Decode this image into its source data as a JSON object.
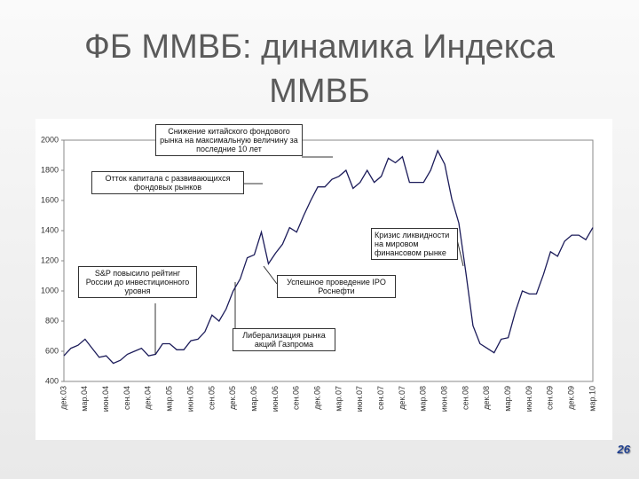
{
  "chart_data": {
    "type": "line",
    "title": "ФБ ММВБ: динамика Индекса ММВБ",
    "page_number": "26",
    "annotations": [
      "Снижение китайского фондового рынка на максимальную величину за последние 10 лет",
      "Отток капитала с развивающихся фондовых рынков",
      "Кризис ликвидности на мировом финансовом рынке",
      "S&P повысило рейтинг России до инвестиционного уровня",
      "Успешное проведение IPO Роснефти",
      "Либерализация рынка акций Газпрома"
    ],
    "categories": [
      "дек.03",
      null,
      null,
      "мар.04",
      null,
      null,
      "июн.04",
      null,
      null,
      "сен.04",
      null,
      null,
      "дек.04",
      null,
      null,
      "мар.05",
      null,
      null,
      "июн.05",
      null,
      null,
      "сен.05",
      null,
      null,
      "дек.05",
      null,
      null,
      "мар.06",
      null,
      null,
      "июн.06",
      null,
      null,
      "сен.06",
      null,
      null,
      "дек.06",
      null,
      null,
      "мар.07",
      null,
      null,
      "июн.07",
      null,
      null,
      "сен.07",
      null,
      null,
      "дек.07",
      null,
      null,
      "мар.08",
      null,
      null,
      "июн.08",
      null,
      null,
      "сен.08",
      null,
      null,
      "дек.08",
      null,
      null,
      "мар.09",
      null,
      null,
      "июн.09",
      null,
      null,
      "сен.09",
      null,
      null,
      "дек.09",
      null,
      null,
      "мар.10"
    ],
    "values": [
      570,
      620,
      640,
      680,
      620,
      560,
      570,
      520,
      540,
      580,
      600,
      620,
      570,
      580,
      650,
      650,
      610,
      610,
      670,
      680,
      730,
      840,
      800,
      880,
      1000,
      1080,
      1220,
      1240,
      1390,
      1180,
      1250,
      1310,
      1420,
      1390,
      1500,
      1600,
      1690,
      1690,
      1740,
      1760,
      1800,
      1680,
      1720,
      1800,
      1720,
      1760,
      1880,
      1850,
      1890,
      1720,
      1720,
      1720,
      1800,
      1930,
      1840,
      1610,
      1450,
      1120,
      770,
      650,
      620,
      590,
      680,
      690,
      860,
      1000,
      980,
      980,
      1110,
      1260,
      1230,
      1330,
      1370,
      1370,
      1340,
      1420
    ],
    "color": "#1c1c5a",
    "ylim": [
      400,
      2000
    ],
    "yticks": [
      400,
      600,
      800,
      1000,
      1200,
      1400,
      1600,
      1800,
      2000
    ],
    "grid": false
  }
}
